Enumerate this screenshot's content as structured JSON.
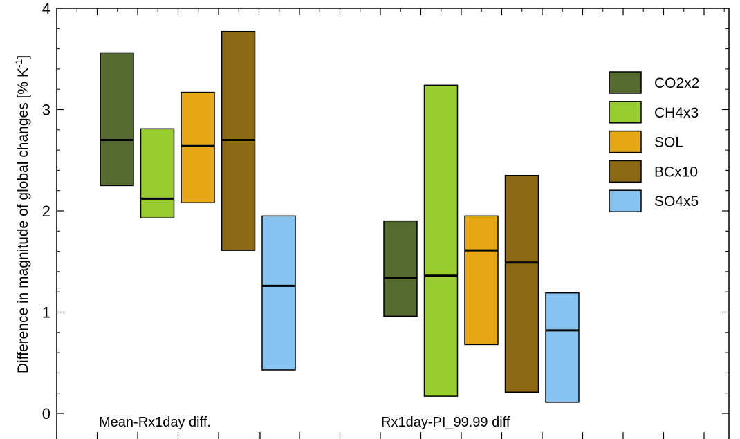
{
  "chart_data": {
    "type": "bar",
    "ylabel": "Difference in magnitude of global changes [% K",
    "ylabel_unit_sup": "-1",
    "ylabel_close": "]",
    "ylim": [
      -0.18,
      4
    ],
    "yticks": [
      "0",
      "1",
      "2",
      "3",
      "4"
    ],
    "groups": [
      {
        "label": "Mean-Rx1day diff."
      },
      {
        "label": "Rx1day-PI_99.99 diff"
      }
    ],
    "series": [
      {
        "name": "CO2x2",
        "color": "#556b2f",
        "low": [
          2.25,
          0.96
        ],
        "high": [
          3.56,
          1.9
        ],
        "median": [
          2.7,
          1.34
        ]
      },
      {
        "name": "CH4x3",
        "color": "#9acd32",
        "low": [
          1.93,
          0.17
        ],
        "high": [
          2.81,
          3.24
        ],
        "median": [
          2.12,
          1.36
        ]
      },
      {
        "name": "SOL",
        "color": "#e6a817",
        "low": [
          2.08,
          0.68
        ],
        "high": [
          3.17,
          1.95
        ],
        "median": [
          2.64,
          1.61
        ]
      },
      {
        "name": "BCx10",
        "color": "#8b6914",
        "low": [
          1.61,
          0.21
        ],
        "high": [
          3.77,
          2.35
        ],
        "median": [
          2.7,
          1.49
        ]
      },
      {
        "name": "SO4x5",
        "color": "#87c3f0",
        "low": [
          0.43,
          0.11
        ],
        "high": [
          1.95,
          1.19
        ],
        "median": [
          1.26,
          0.82
        ]
      }
    ],
    "legend_position": "top-right",
    "grid": false
  }
}
